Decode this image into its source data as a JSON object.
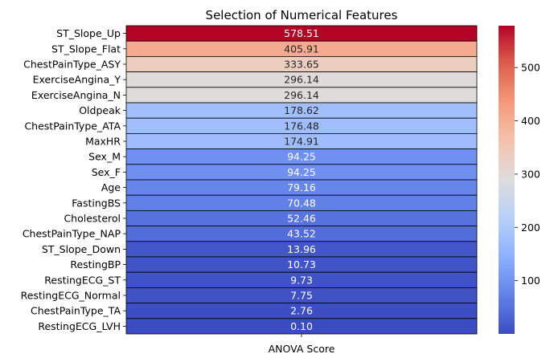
{
  "chart_data": {
    "type": "heatmap",
    "title": "Selection of Numerical Features",
    "column_label": "ANOVA Score",
    "colormap": "coolwarm",
    "vmin": 0.1,
    "vmax": 578.51,
    "colorbar_ticks": [
      100,
      200,
      300,
      400,
      500
    ],
    "rows": [
      {
        "feature": "ST_Slope_Up",
        "value": 578.51,
        "label": "578.51"
      },
      {
        "feature": "ST_Slope_Flat",
        "value": 405.91,
        "label": "405.91"
      },
      {
        "feature": "ChestPainType_ASY",
        "value": 333.65,
        "label": "333.65"
      },
      {
        "feature": "ExerciseAngina_Y",
        "value": 296.14,
        "label": "296.14"
      },
      {
        "feature": "ExerciseAngina_N",
        "value": 296.14,
        "label": "296.14"
      },
      {
        "feature": "Oldpeak",
        "value": 178.62,
        "label": "178.62"
      },
      {
        "feature": "ChestPainType_ATA",
        "value": 176.48,
        "label": "176.48"
      },
      {
        "feature": "MaxHR",
        "value": 174.91,
        "label": "174.91"
      },
      {
        "feature": "Sex_M",
        "value": 94.25,
        "label": "94.25"
      },
      {
        "feature": "Sex_F",
        "value": 94.25,
        "label": "94.25"
      },
      {
        "feature": "Age",
        "value": 79.16,
        "label": "79.16"
      },
      {
        "feature": "FastingBS",
        "value": 70.48,
        "label": "70.48"
      },
      {
        "feature": "Cholesterol",
        "value": 52.46,
        "label": "52.46"
      },
      {
        "feature": "ChestPainType_NAP",
        "value": 43.52,
        "label": "43.52"
      },
      {
        "feature": "ST_Slope_Down",
        "value": 13.96,
        "label": "13.96"
      },
      {
        "feature": "RestingBP",
        "value": 10.73,
        "label": "10.73"
      },
      {
        "feature": "RestingECG_ST",
        "value": 9.73,
        "label": "9.73"
      },
      {
        "feature": "RestingECG_Normal",
        "value": 7.75,
        "label": "7.75"
      },
      {
        "feature": "ChestPainType_TA",
        "value": 2.76,
        "label": "2.76"
      },
      {
        "feature": "RestingECG_LVH",
        "value": 0.1,
        "label": "0.10"
      }
    ]
  }
}
